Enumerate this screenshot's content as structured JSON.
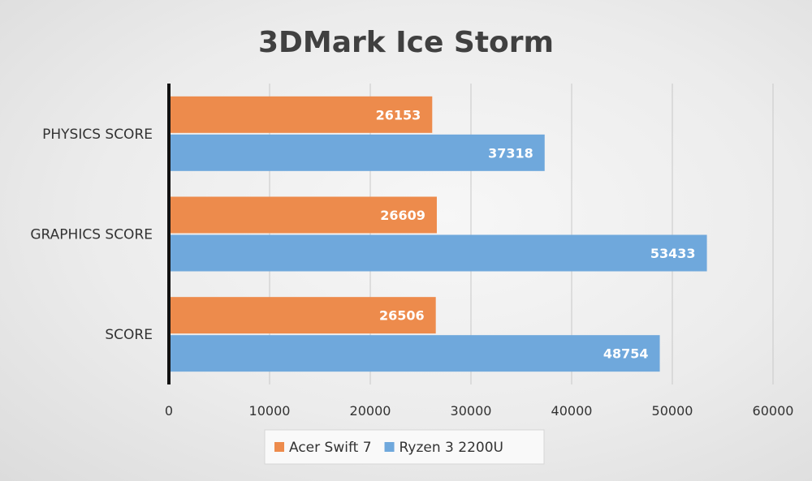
{
  "chart_data": {
    "type": "bar",
    "orientation": "horizontal",
    "title": "3DMark Ice Storm",
    "xlabel": "",
    "ylabel": "",
    "categories": [
      "PHYSICS SCORE",
      "GRAPHICS SCORE",
      "SCORE"
    ],
    "series": [
      {
        "name": "Acer Swift 7",
        "color": "#ed8b4c",
        "values": [
          26153,
          26609,
          26506
        ]
      },
      {
        "name": "Ryzen 3 2200U",
        "color": "#6fa8dc",
        "values": [
          37318,
          53433,
          48754
        ]
      }
    ],
    "xlim": [
      0,
      60000
    ],
    "xticks": [
      "0",
      "10000",
      "20000",
      "30000",
      "40000",
      "50000",
      "60000"
    ],
    "grid": true,
    "data_labels": true,
    "legend": "bottom"
  }
}
